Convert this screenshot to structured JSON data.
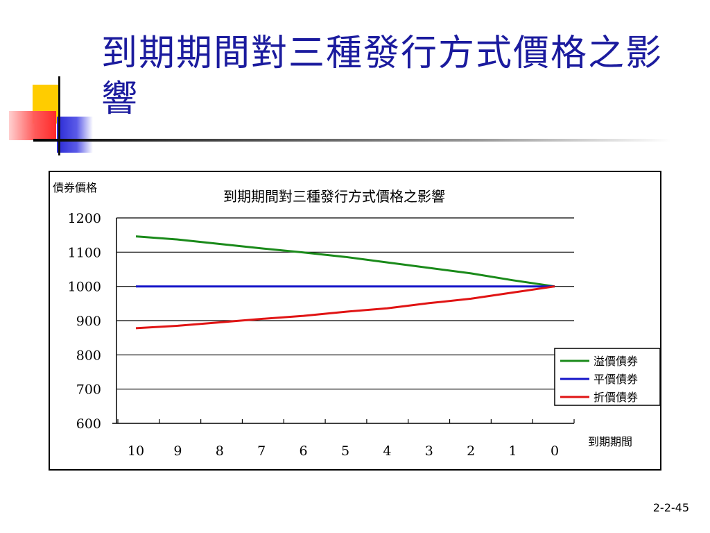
{
  "slide": {
    "title": "到期期間對三種發行方式價格之影響",
    "page_number": "2-2-45"
  },
  "colors": {
    "title": "#1b1b9e",
    "premium": "#1a8a1a",
    "par": "#1414c8",
    "discount": "#e01414"
  },
  "chart_data": {
    "type": "line",
    "title": "到期期間對三種發行方式價格之影響",
    "ylabel": "債券價格",
    "xlabel": "到期期間",
    "x": [
      10,
      9,
      8,
      7,
      6,
      5,
      4,
      3,
      2,
      1,
      0
    ],
    "ylim": [
      600,
      1200
    ],
    "yticks": [
      1200,
      1100,
      1000,
      900,
      800,
      700,
      600
    ],
    "grid": true,
    "legend_position": "right",
    "series": [
      {
        "name": "溢價債券",
        "color": "#1a8a1a",
        "values": [
          1146,
          1137,
          1124,
          1111,
          1099,
          1086,
          1070,
          1054,
          1038,
          1018,
          1000
        ]
      },
      {
        "name": "平價債券",
        "color": "#1414c8",
        "values": [
          1000,
          1000,
          1000,
          1000,
          1000,
          1000,
          1000,
          1000,
          1000,
          1000,
          1000
        ]
      },
      {
        "name": "折價債券",
        "color": "#e01414",
        "values": [
          878,
          885,
          895,
          905,
          914,
          926,
          936,
          951,
          964,
          982,
          1000
        ]
      }
    ]
  }
}
